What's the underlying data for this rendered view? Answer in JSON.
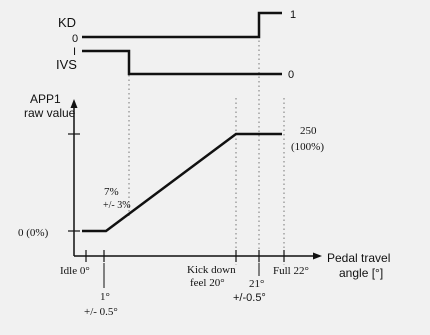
{
  "signals": {
    "kd": {
      "label": "KD",
      "low_label": "0",
      "high_label": "1"
    },
    "ivs": {
      "label": "IVS",
      "high_label": "I",
      "low_label": "0"
    }
  },
  "y_axis": {
    "label_line1": "APP1",
    "label_line2": "raw value",
    "zero_label": "0 (0%)"
  },
  "x_axis": {
    "label_line1": "Pedal travel",
    "label_line2": "angle [°]"
  },
  "max": {
    "value": "250",
    "percent": "(100%)"
  },
  "annotation_7": {
    "line1": "7%",
    "line2": "+/- 3%"
  },
  "ticks": {
    "idle": "Idle 0°",
    "kick_down_line1": "Kick down",
    "kick_down_line2": "feel 20°",
    "full": "Full 22°",
    "one_deg_line1": "1°",
    "one_deg_line2": "+/- 0.5°",
    "twentyone_line1": "21°",
    "twentyone_line2": "+/-0.5°"
  },
  "colors": {
    "line": "#111111",
    "guide": "#777777",
    "background": "#f1f1f1"
  }
}
